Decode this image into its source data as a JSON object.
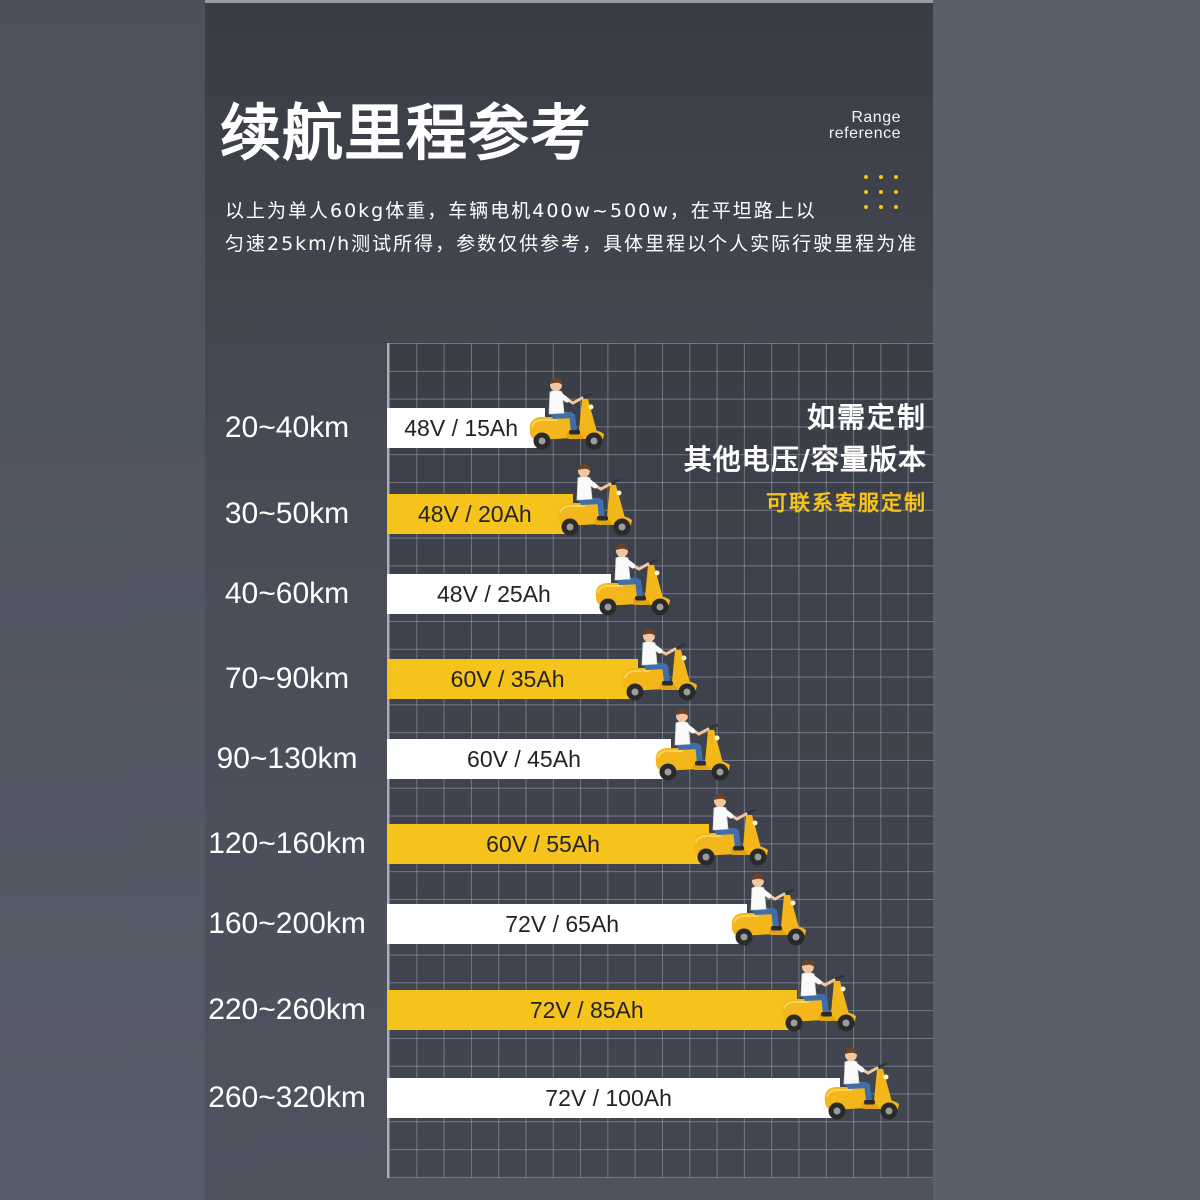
{
  "chart_data": {
    "type": "bar",
    "orientation": "horizontal",
    "title": "续航里程参考",
    "categories": [
      "20~40km",
      "30~50km",
      "40~60km",
      "70~90km",
      "90~130km",
      "120~160km",
      "160~200km",
      "220~260km",
      "260~320km"
    ],
    "bar_labels": [
      "48V / 15Ah",
      "48V / 20Ah",
      "48V / 25Ah",
      "60V / 35Ah",
      "60V / 45Ah",
      "60V / 55Ah",
      "72V / 65Ah",
      "72V / 85Ah",
      "72V / 100Ah"
    ],
    "values": [
      29,
      34,
      41,
      46,
      52,
      59,
      66,
      75,
      83
    ],
    "bar_colors": [
      "#ffffff",
      "#f5c31c",
      "#ffffff",
      "#f5c31c",
      "#ffffff",
      "#f5c31c",
      "#ffffff",
      "#f5c31c",
      "#ffffff"
    ],
    "grid": true,
    "legend": "none"
  },
  "badge": {
    "line1": "Range",
    "line2": "reference"
  },
  "note": {
    "line1": "以上为单人60kg体重，车辆电机400w~500w，在平坦路上以",
    "line2": "匀速25km/h测试所得，参数仅供参考，具体里程以个人实际行驶里程为准"
  },
  "custom": {
    "line1": "如需定制",
    "line2": "其他电压/容量版本",
    "line3": "可联系客服定制"
  },
  "colors": {
    "accent": "#f5c31c",
    "bar_light": "#ffffff",
    "panel_dark": "#393c44"
  },
  "icons": {
    "rider": "scooter-rider-icon",
    "decor": "dot-grid-icon"
  }
}
